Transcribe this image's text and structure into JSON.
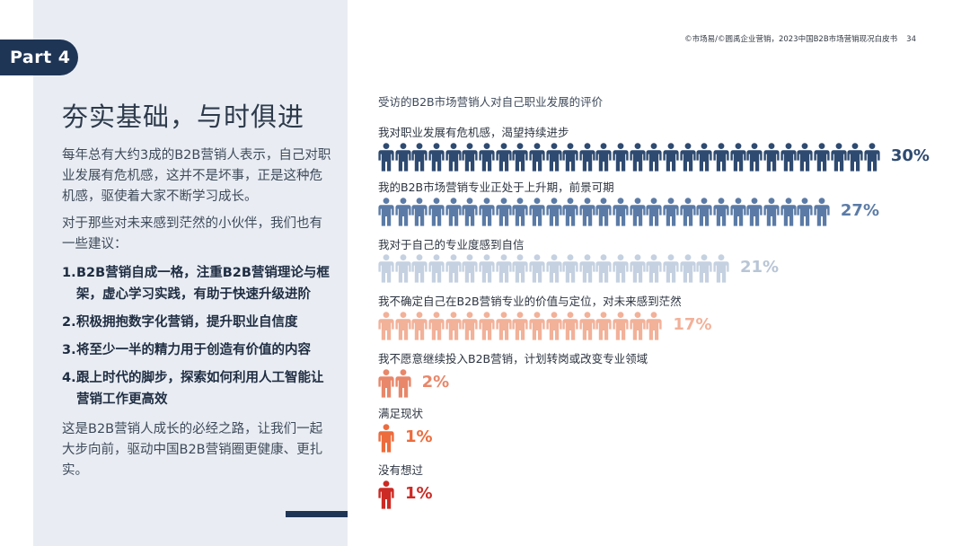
{
  "header": {
    "source": "©市场易/©圆禹企业营销，2023中国B2B市场营销现况白皮书",
    "page_number": "34"
  },
  "sidebar": {
    "part_label": "Part 4",
    "title": "夯实基础，与时俱进",
    "intro": "每年总有大约3成的B2B营销人表示，自己对职业发展有危机感，这并不是坏事，正是这种危机感，驱使着大家不断学习成长。",
    "advice_intro": "对于那些对未来感到茫然的小伙伴，我们也有一些建议：",
    "tips": [
      {
        "num": "1.",
        "text": "B2B营销自成一格，注重B2B营销理论与框架，虚心学习实践，有助于快速升级进阶"
      },
      {
        "num": "2.",
        "text": "积极拥抱数字化营销，提升职业自信度"
      },
      {
        "num": "3.",
        "text": "将至少一半的精力用于创造有价值的内容"
      },
      {
        "num": "4.",
        "text": "跟上时代的脚步，探索如何利用人工智能让营销工作更高效"
      }
    ],
    "closing": "这是B2B营销人成长的必经之路，让我们一起大步向前，驱动中国B2B营销圈更健康、更扎实。"
  },
  "chart_data": {
    "type": "bar",
    "title": "受访的B2B市场营销人对自己职业发展的评价",
    "unit": "%",
    "categories": [
      "我对职业发展有危机感，渴望持续进步",
      "我的B2B市场营销专业正处于上升期，前景可期",
      "我对于自己的专业度感到自信",
      "我不确定自己在B2B营销专业的价值与定位，对未来感到茫然",
      "我不愿意继续投入B2B营销，计划转岗或改变专业领域",
      "满足现状",
      "没有想过"
    ],
    "values": [
      30,
      27,
      21,
      17,
      2,
      1,
      1
    ],
    "value_labels": [
      "30%",
      "27%",
      "21%",
      "17%",
      "2%",
      "1%",
      "1%"
    ],
    "colors": [
      "#2e4a70",
      "#5b7ba6",
      "#c5d1e1",
      "#f2b199",
      "#e8876a",
      "#ec6c3d",
      "#cc2a24"
    ],
    "label_colors": [
      "#2e4a70",
      "#5b7ba6",
      "#b8c5d6",
      "#f2b199",
      "#e8876a",
      "#ec6c3d",
      "#cc2a24"
    ]
  }
}
